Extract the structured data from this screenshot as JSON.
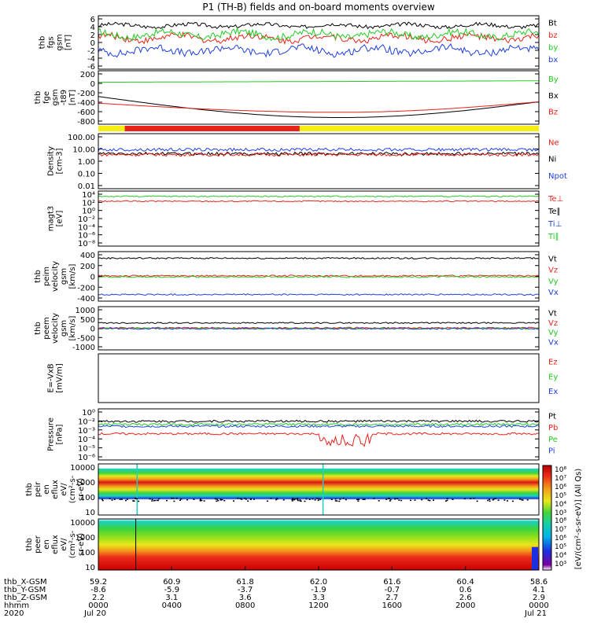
{
  "title": "P1 (TH-B) fields and on-board moments overview",
  "colors": {
    "black": "#000000",
    "red": "#e8231b",
    "green": "#22cc22",
    "blue": "#1f3fe0",
    "yellow": "#f6ee10"
  },
  "chart_data": [
    {
      "type": "line",
      "id": "p1",
      "ylabel_lines": [
        "thb",
        "fgs",
        "gsm",
        "[nT]"
      ],
      "yticks": [
        "6",
        "4",
        "2",
        "0",
        "-2",
        "-4",
        "-6"
      ],
      "ylim": [
        -6,
        6
      ],
      "legend": [
        {
          "name": "Bt",
          "color": "black"
        },
        {
          "name": "bz",
          "color": "red"
        },
        {
          "name": "by",
          "color": "green"
        },
        {
          "name": "bx",
          "color": "blue"
        }
      ],
      "series": [
        {
          "name": "Bt",
          "color": "black",
          "base": 3.8,
          "amp": 0.7
        },
        {
          "name": "bz",
          "color": "red",
          "base": 1.0,
          "amp": 1.2
        },
        {
          "name": "by",
          "color": "green",
          "base": 1.8,
          "amp": 1.3
        },
        {
          "name": "bx",
          "color": "blue",
          "base": -1.8,
          "amp": 1.4
        }
      ]
    },
    {
      "type": "line",
      "id": "p2",
      "ylabel_lines": [
        "thb",
        "fge",
        "gsm",
        "-t89",
        "[nT]"
      ],
      "yticks": [
        "200",
        "0",
        "-200",
        "-400",
        "-600",
        "-800"
      ],
      "ylim": [
        -900,
        220
      ],
      "legend": [
        {
          "name": "By",
          "color": "green"
        },
        {
          "name": "Bx",
          "color": "black"
        },
        {
          "name": "Bz",
          "color": "red"
        }
      ],
      "series": [
        {
          "name": "By",
          "color": "green",
          "start": -20,
          "end": 10
        },
        {
          "name": "Bx",
          "color": "black",
          "start": -320,
          "min": -760,
          "end": -430
        },
        {
          "name": "Bz",
          "color": "red",
          "start": -460,
          "min": -650,
          "end": -430
        }
      ]
    },
    {
      "type": "bar",
      "id": "mode",
      "segments": [
        {
          "from": 0.0,
          "to": 0.06,
          "color": "yellow"
        },
        {
          "from": 0.06,
          "to": 0.457,
          "color": "red"
        },
        {
          "from": 0.457,
          "to": 1.0,
          "color": "yellow"
        }
      ]
    },
    {
      "type": "line",
      "id": "p3",
      "scale": "log",
      "ylabel_lines": [
        "Density",
        "[cm-3]"
      ],
      "yticks": [
        "100.00",
        "10.00",
        "1.00",
        "0.10",
        "0.01"
      ],
      "ylim": [
        0.01,
        300
      ],
      "legend": [
        {
          "name": "Ne",
          "color": "red"
        },
        {
          "name": "Ni",
          "color": "black"
        },
        {
          "name": "Npot",
          "color": "blue"
        }
      ],
      "series": [
        {
          "name": "Npot",
          "color": "blue",
          "base": 15
        },
        {
          "name": "Ni",
          "color": "black",
          "base": 7
        },
        {
          "name": "Ne",
          "color": "red",
          "base": 6
        }
      ]
    },
    {
      "type": "line",
      "id": "p4",
      "scale": "log",
      "ylabel_lines": [
        "magt3",
        "[eV]"
      ],
      "yticks": [
        "10⁴",
        "10²",
        "10⁰",
        "10⁻²",
        "10⁻⁴",
        "10⁻⁶",
        "10⁻⁸"
      ],
      "ylim": [
        1e-08,
        10000.0
      ],
      "legend": [
        {
          "name": "Te⊥",
          "color": "red"
        },
        {
          "name": "Te∥",
          "color": "black"
        },
        {
          "name": "Ti⊥",
          "color": "blue"
        },
        {
          "name": "Ti∥",
          "color": "green"
        }
      ],
      "series": [
        {
          "name": "Te⊥",
          "color": "red",
          "base": 60
        },
        {
          "name": "Ti∥",
          "color": "green",
          "base": 700
        }
      ]
    },
    {
      "type": "line",
      "id": "p5",
      "ylabel_lines": [
        "thb",
        "peim",
        "velocity",
        "gsm",
        "[km/s]"
      ],
      "yticks": [
        "400",
        "200",
        "0",
        "-200",
        "-400"
      ],
      "ylim": [
        -450,
        450
      ],
      "legend": [
        {
          "name": "Vt",
          "color": "black"
        },
        {
          "name": "Vz",
          "color": "red"
        },
        {
          "name": "Vy",
          "color": "green"
        },
        {
          "name": "Vx",
          "color": "blue"
        }
      ],
      "series": [
        {
          "name": "Vt",
          "color": "black",
          "base": 330
        },
        {
          "name": "Vz",
          "color": "red",
          "base": 10
        },
        {
          "name": "Vy",
          "color": "green",
          "base": -10
        },
        {
          "name": "Vx",
          "color": "blue",
          "base": -330
        }
      ]
    },
    {
      "type": "line",
      "id": "p6",
      "ylabel_lines": [
        "thb",
        "peem",
        "velocity",
        "gsm",
        "[km/s]"
      ],
      "yticks": [
        "1000",
        "500",
        "0",
        "-500",
        "-1000"
      ],
      "ylim": [
        -1050,
        1050
      ],
      "legend": [
        {
          "name": "Vt",
          "color": "black"
        },
        {
          "name": "Vz",
          "color": "red"
        },
        {
          "name": "Vy",
          "color": "green"
        },
        {
          "name": "Vx",
          "color": "blue"
        }
      ],
      "series": [
        {
          "name": "Vt",
          "color": "black",
          "base": 260
        },
        {
          "name": "Vz",
          "color": "red",
          "base": 20
        },
        {
          "name": "Vy",
          "color": "green",
          "base": -10
        },
        {
          "name": "Vx",
          "color": "blue",
          "base": -20
        }
      ]
    },
    {
      "type": "line",
      "id": "p7",
      "ylabel_lines": [
        "E=-VxB",
        "[mV/m]"
      ],
      "yticks": [],
      "ylim": [
        -1,
        1
      ],
      "legend": [
        {
          "name": "Ez",
          "color": "red"
        },
        {
          "name": "Ey",
          "color": "green"
        },
        {
          "name": "Ex",
          "color": "blue"
        }
      ],
      "series": []
    },
    {
      "type": "line",
      "id": "p8",
      "scale": "log",
      "ylabel_lines": [
        "Pressure",
        "[nPa]"
      ],
      "yticks": [
        "10⁰",
        "10⁻²",
        "10⁻³",
        "10⁻⁴",
        "10⁻⁵",
        "10⁻⁶"
      ],
      "ylim": [
        1e-06,
        1
      ],
      "legend": [
        {
          "name": "Pt",
          "color": "black"
        },
        {
          "name": "Pb",
          "color": "red"
        },
        {
          "name": "Pe",
          "color": "green"
        },
        {
          "name": "Pi",
          "color": "blue"
        }
      ],
      "series": [
        {
          "name": "Pt",
          "color": "black",
          "base": 0.035
        },
        {
          "name": "Pe",
          "color": "green",
          "base": 0.015
        },
        {
          "name": "Pi",
          "color": "blue",
          "base": 0.009
        },
        {
          "name": "Pb",
          "color": "red",
          "base": 0.0012
        }
      ]
    },
    {
      "type": "heatmap",
      "id": "p9",
      "ylabel_lines": [
        "thb",
        "peir",
        "en",
        "eflux",
        "eV/",
        "(cm²-s-",
        "sr-eV)"
      ],
      "yticks": [
        "10000",
        "1000",
        "100",
        "10"
      ],
      "ylim": [
        5,
        20000
      ]
    },
    {
      "type": "heatmap",
      "id": "p10",
      "ylabel_lines": [
        "thb",
        "peer",
        "en",
        "eflux",
        "eV/",
        "(cm²-s-",
        "sr-eV)"
      ],
      "yticks": [
        "10000",
        "1000",
        "100",
        "10"
      ],
      "ylim": [
        5,
        20000
      ]
    }
  ],
  "colorbar": {
    "label": "[eV/(cm²-s-sr-eV)] (All Qs)",
    "upper_ticks": [
      "10⁸",
      "10⁷",
      "10⁶",
      "10⁵",
      "10⁴",
      "10³"
    ],
    "lower_ticks": [
      "10⁸",
      "10⁷",
      "10⁶",
      "10⁵",
      "10⁴",
      "10³"
    ]
  },
  "xaxis": {
    "row_labels": [
      "thb_X-GSM",
      "thb_Y-GSM",
      "thb_Z-GSM",
      "hhmm",
      "2020"
    ],
    "columns": [
      {
        "x": "59.2",
        "y": "-8.6",
        "z": "2.2",
        "time": "0000",
        "date": "Jul 20"
      },
      {
        "x": "60.9",
        "y": "-5.9",
        "z": "3.1",
        "time": "0400",
        "date": ""
      },
      {
        "x": "61.8",
        "y": "-3.7",
        "z": "3.6",
        "time": "0800",
        "date": ""
      },
      {
        "x": "62.0",
        "y": "-1.9",
        "z": "3.3",
        "time": "1200",
        "date": ""
      },
      {
        "x": "61.6",
        "y": "-0.7",
        "z": "2.7",
        "time": "1600",
        "date": ""
      },
      {
        "x": "60.4",
        "y": "0.6",
        "z": "2.6",
        "time": "2000",
        "date": ""
      },
      {
        "x": "58.6",
        "y": "4.1",
        "z": "2.9",
        "time": "0000",
        "date": "Jul 21"
      }
    ]
  }
}
